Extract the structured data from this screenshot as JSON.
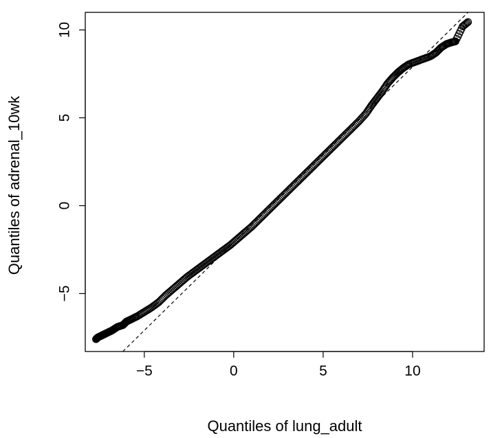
{
  "chart_data": {
    "type": "scatter",
    "xlabel": "Quantiles of lung_adult",
    "ylabel": "Quantiles of adrenal_10wk",
    "xlim": [
      -8.3,
      14.0
    ],
    "ylim": [
      -8.3,
      11.0
    ],
    "x_ticks": [
      -5,
      0,
      5,
      10
    ],
    "x_tick_labels": [
      "−5",
      "0",
      "5",
      "10"
    ],
    "y_ticks": [
      -5,
      0,
      5,
      10
    ],
    "y_tick_labels": [
      "−5",
      "0",
      "5",
      "10"
    ],
    "grid": false,
    "legend": "none",
    "reference_line": {
      "style": "dashed",
      "slope": 1.0,
      "intercept": -2.1
    },
    "series": [
      {
        "marker": "open-circle",
        "color": "#000000",
        "x": [
          -7.7,
          -7.6,
          -7.4,
          -7.2,
          -7.0,
          -6.8,
          -6.5,
          -6.2,
          -6.0,
          -5.7,
          -5.4,
          -5.0,
          -4.6,
          -4.2,
          -3.8,
          -3.4,
          -3.0,
          -2.6,
          -2.2,
          -1.8,
          -1.4,
          -1.0,
          -0.6,
          -0.2,
          0.2,
          0.6,
          1.0,
          1.4,
          1.8,
          2.2,
          2.6,
          3.0,
          3.4,
          3.8,
          4.2,
          4.6,
          5.0,
          5.4,
          5.8,
          6.2,
          6.6,
          7.0,
          7.4,
          7.7,
          8.0,
          8.3,
          8.6,
          8.9,
          9.2,
          9.5,
          9.8,
          10.2,
          10.6,
          11.0,
          11.3,
          11.6,
          11.9,
          12.2,
          12.4,
          12.8,
          13.1
        ],
        "y": [
          -7.6,
          -7.5,
          -7.4,
          -7.3,
          -7.2,
          -7.1,
          -6.9,
          -6.8,
          -6.6,
          -6.45,
          -6.3,
          -6.05,
          -5.8,
          -5.5,
          -5.1,
          -4.75,
          -4.4,
          -4.05,
          -3.75,
          -3.45,
          -3.15,
          -2.85,
          -2.55,
          -2.25,
          -1.9,
          -1.55,
          -1.2,
          -0.8,
          -0.4,
          0.0,
          0.4,
          0.8,
          1.2,
          1.6,
          2.0,
          2.4,
          2.8,
          3.2,
          3.6,
          4.0,
          4.4,
          4.8,
          5.25,
          5.7,
          6.1,
          6.5,
          6.95,
          7.3,
          7.6,
          7.85,
          8.05,
          8.2,
          8.35,
          8.5,
          8.7,
          9.0,
          9.2,
          9.3,
          9.35,
          10.2,
          10.45
        ]
      }
    ]
  }
}
